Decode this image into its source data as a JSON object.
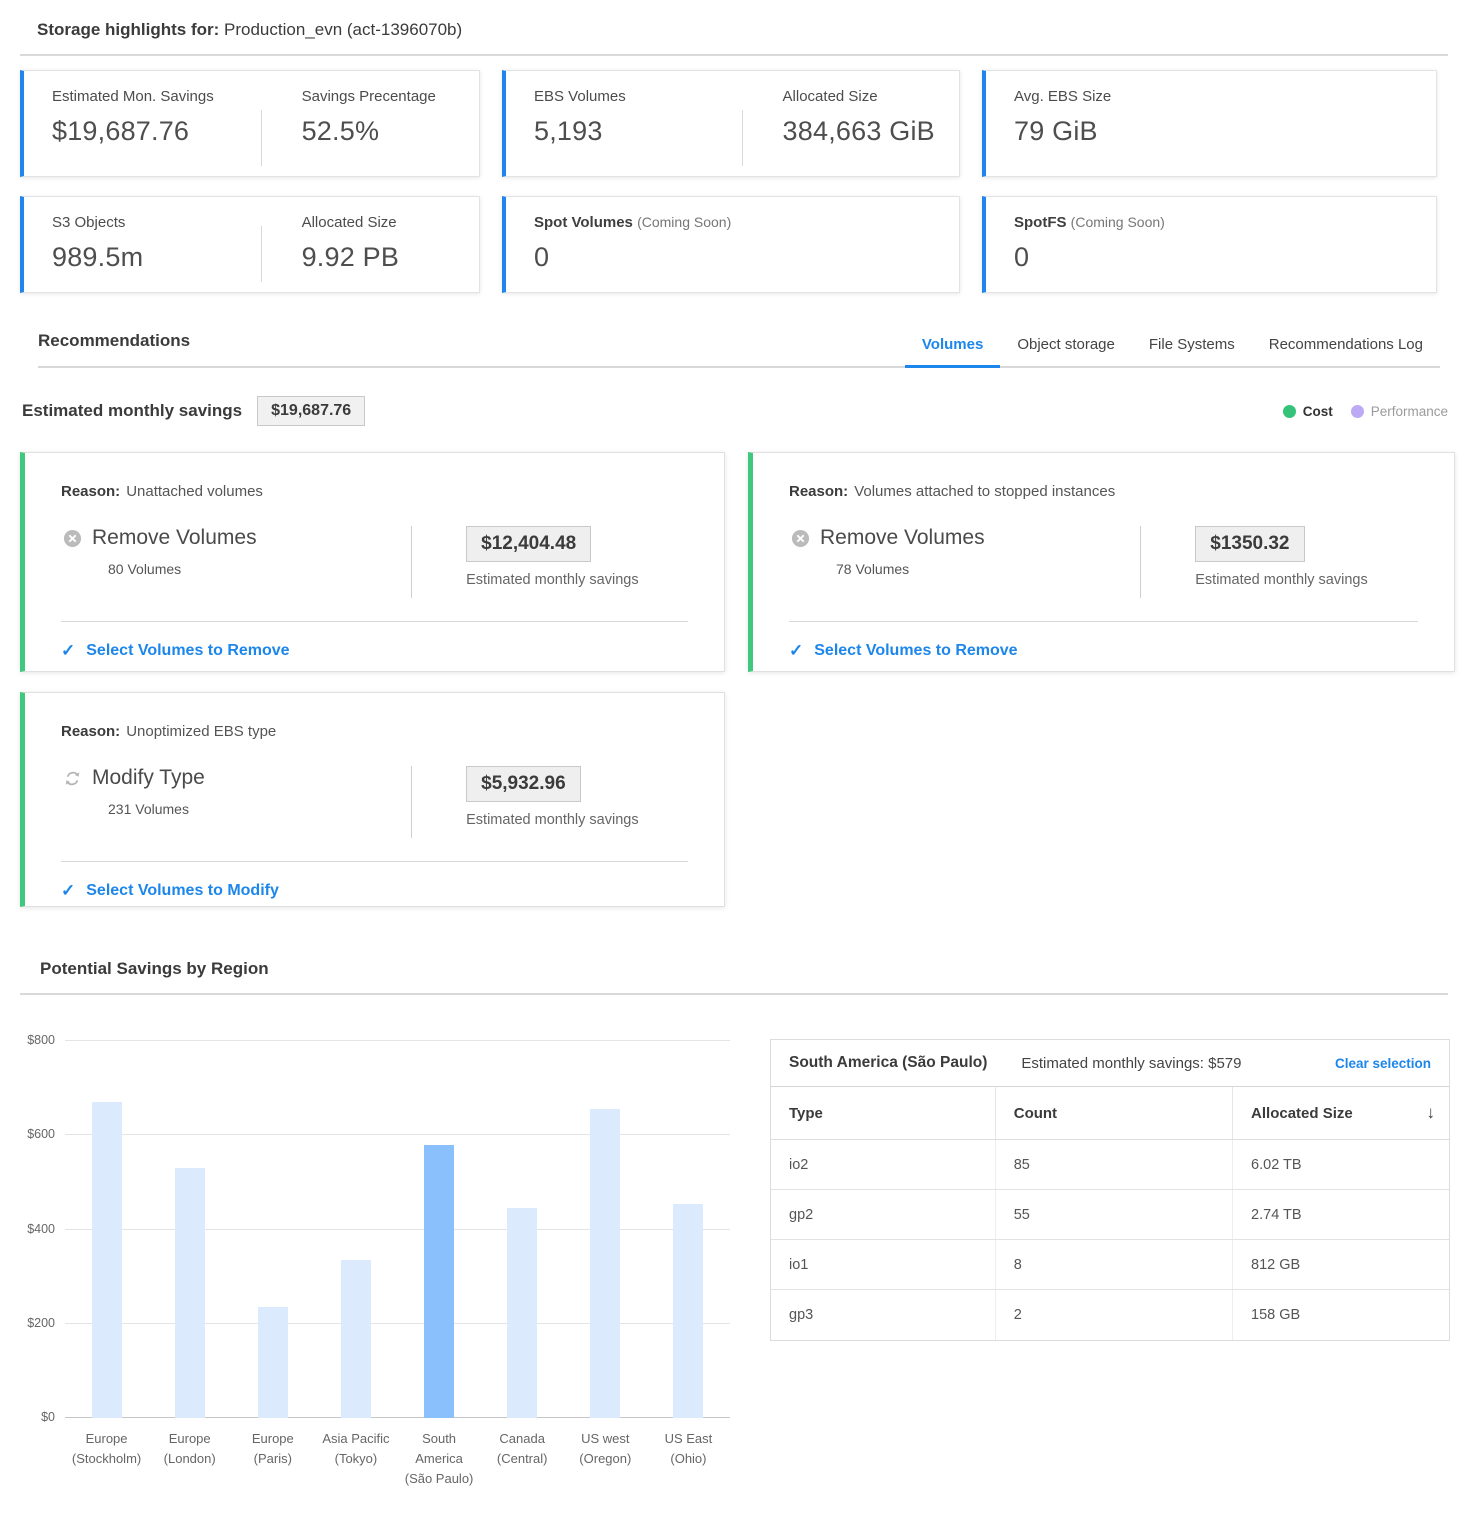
{
  "page": {
    "title_label": "Storage highlights for:",
    "title_value": "Production_evn (act-1396070b)"
  },
  "stat_cards": {
    "est_savings": {
      "label": "Estimated Mon. Savings",
      "value": "$19,687.76"
    },
    "savings_pct": {
      "label": "Savings Precentage",
      "value": "52.5%"
    },
    "ebs_volumes": {
      "label": "EBS Volumes",
      "value": "5,193"
    },
    "ebs_allocated": {
      "label": "Allocated Size",
      "value": "384,663 GiB"
    },
    "avg_ebs": {
      "label": "Avg. EBS Size",
      "value": "79 GiB"
    },
    "s3_objects": {
      "label": "S3 Objects",
      "value": "989.5m"
    },
    "s3_allocated": {
      "label": "Allocated Size",
      "value": "9.92 PB"
    },
    "spot_volumes": {
      "label": "Spot Volumes",
      "suffix": "(Coming Soon)",
      "value": "0"
    },
    "spotfs": {
      "label": "SpotFS",
      "suffix": "(Coming Soon)",
      "value": "0"
    }
  },
  "recommendations": {
    "heading": "Recommendations",
    "tabs": [
      {
        "label": "Volumes"
      },
      {
        "label": "Object storage"
      },
      {
        "label": "File Systems"
      },
      {
        "label": "Recommendations Log"
      }
    ],
    "active_tab": "Volumes",
    "est_monthly_label": "Estimated monthly savings",
    "est_monthly_value": "$19,687.76",
    "legend": {
      "cost": "Cost",
      "performance": "Performance"
    },
    "cards": [
      {
        "reason_label": "Reason:",
        "reason": "Unattached volumes",
        "action": "Remove Volumes",
        "count": "80 Volumes",
        "savings": "$12,404.48",
        "savings_caption": "Estimated monthly savings",
        "link": "Select Volumes to Remove",
        "icon": "remove-circle"
      },
      {
        "reason_label": "Reason:",
        "reason": "Volumes attached to stopped instances",
        "action": "Remove Volumes",
        "count": "78 Volumes",
        "savings": "$1350.32",
        "savings_caption": "Estimated monthly savings",
        "link": "Select Volumes to Remove",
        "icon": "remove-circle"
      },
      {
        "reason_label": "Reason:",
        "reason": "Unoptimized EBS type",
        "action": "Modify Type",
        "count": "231 Volumes",
        "savings": "$5,932.96",
        "savings_caption": "Estimated monthly savings",
        "link": "Select Volumes to Modify",
        "icon": "refresh"
      }
    ]
  },
  "region_section": {
    "heading": "Potential Savings by Region"
  },
  "chart_data": {
    "type": "bar",
    "title": "Potential Savings by Region",
    "categories": [
      "Europe (Stockholm)",
      "Europe (London)",
      "Europe (Paris)",
      "Asia Pacific (Tokyo)",
      "South America (São Paulo)",
      "Canada (Central)",
      "US west (Oregon)",
      "US East (Ohio)"
    ],
    "values": [
      670,
      530,
      235,
      335,
      579,
      445,
      655,
      455
    ],
    "selected_index": 4,
    "selected_category": "South America (São Paulo)",
    "xlabel": "",
    "ylabel": "",
    "ylim": [
      0,
      800
    ],
    "yticks": [
      "$0",
      "$200",
      "$400",
      "$600",
      "$800"
    ],
    "grid": true,
    "legend_position": "none",
    "bar_color": "#dbeafd",
    "selected_bar_color": "#8ac0fb"
  },
  "region_table": {
    "title": "South America (São Paulo)",
    "subtitle": "Estimated monthly savings: $579",
    "clear_link": "Clear selection",
    "columns": [
      "Type",
      "Count",
      "Allocated Size"
    ],
    "sort_column": "Allocated Size",
    "sort_direction": "desc",
    "rows": [
      {
        "type": "io2",
        "count": "85",
        "size": "6.02 TB"
      },
      {
        "type": "gp2",
        "count": "55",
        "size": "2.74 TB"
      },
      {
        "type": "io1",
        "count": "8",
        "size": "812 GB"
      },
      {
        "type": "gp3",
        "count": "2",
        "size": "158 GB"
      }
    ]
  },
  "colors": {
    "accent_blue": "#2186eb",
    "link_blue": "#1d86ea",
    "accent_green": "#3ec97e",
    "cost_green": "#34c378",
    "performance_purple": "#bcaaf5",
    "bar_light": "#dbeafd",
    "bar_selected": "#8ac0fb"
  }
}
